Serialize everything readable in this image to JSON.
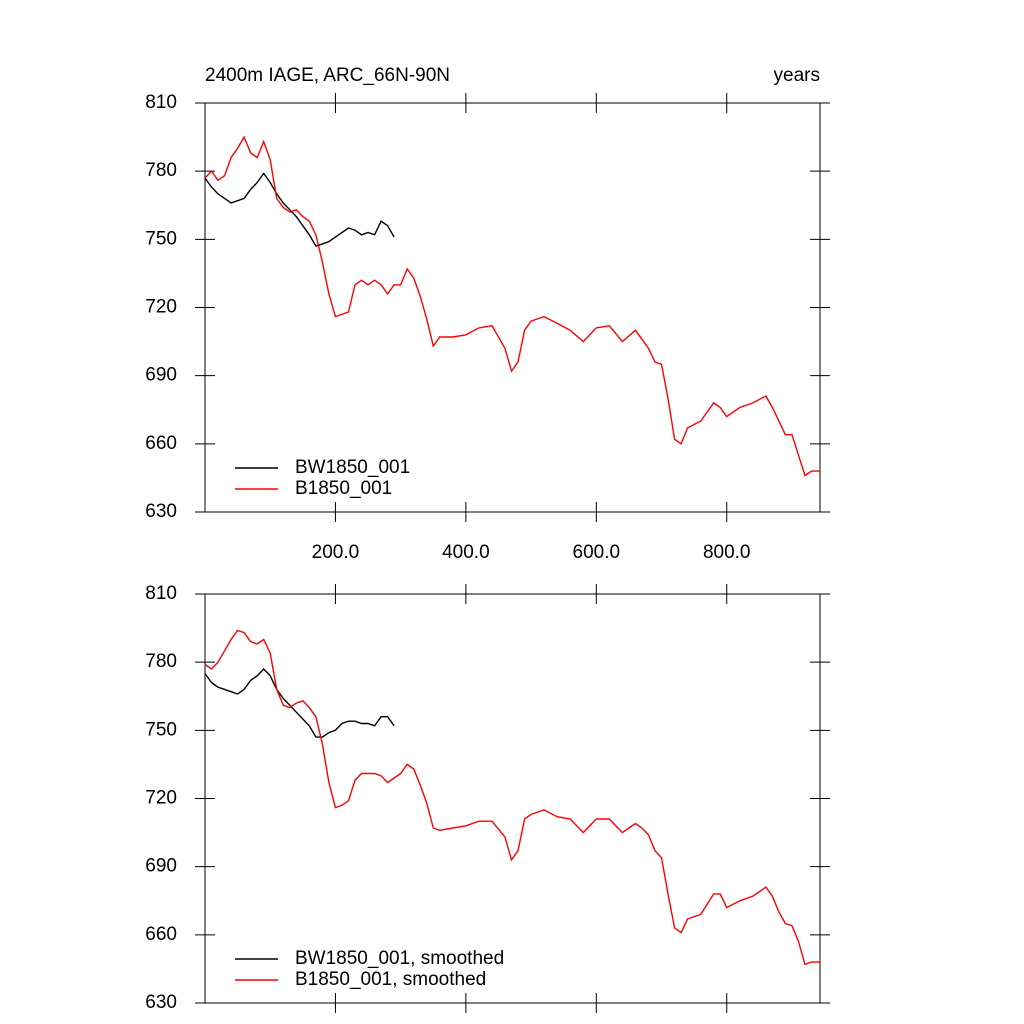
{
  "chart_data": [
    {
      "type": "line",
      "title": "2400m IAGE, ARC_66N-90N",
      "subtitle": "years",
      "xlim": [
        0,
        943
      ],
      "xticks": [
        {
          "value": 200,
          "label": "200.0"
        },
        {
          "value": 400,
          "label": "400.0"
        },
        {
          "value": 600,
          "label": "600.0"
        },
        {
          "value": 800,
          "label": "800.0"
        }
      ],
      "xtick_labels": true,
      "ylim": [
        630,
        810
      ],
      "yticks": [
        630,
        660,
        690,
        720,
        750,
        780,
        810
      ],
      "legend": "lower left",
      "series": [
        {
          "name": "BW1850_001",
          "color": "#000000",
          "x": [
            0,
            10,
            20,
            30,
            40,
            50,
            60,
            70,
            80,
            90,
            100,
            110,
            120,
            130,
            140,
            150,
            160,
            170,
            180,
            190,
            200,
            210,
            220,
            230,
            240,
            250,
            260,
            270,
            280,
            290
          ],
          "values": [
            777,
            773,
            770,
            768,
            766,
            767,
            768,
            772,
            775,
            779,
            775,
            770,
            766,
            763,
            760,
            756,
            752,
            747,
            748,
            749,
            751,
            753,
            755,
            754,
            752,
            753,
            752,
            758,
            756,
            751
          ]
        },
        {
          "name": "B1850_001",
          "color": "#ff0000",
          "x": [
            0,
            10,
            20,
            30,
            40,
            50,
            60,
            70,
            80,
            90,
            100,
            110,
            120,
            130,
            140,
            150,
            160,
            170,
            180,
            190,
            200,
            210,
            220,
            230,
            240,
            250,
            260,
            270,
            280,
            290,
            300,
            310,
            320,
            330,
            340,
            350,
            360,
            380,
            400,
            420,
            440,
            460,
            470,
            480,
            490,
            500,
            520,
            540,
            560,
            580,
            600,
            620,
            640,
            660,
            670,
            680,
            690,
            700,
            710,
            720,
            730,
            740,
            760,
            780,
            790,
            800,
            820,
            840,
            860,
            870,
            880,
            890,
            900,
            910,
            920,
            930,
            943
          ],
          "values": [
            777,
            780,
            776,
            778,
            786,
            790,
            795,
            788,
            786,
            793,
            785,
            768,
            764,
            762,
            763,
            760,
            758,
            752,
            740,
            726,
            716,
            717,
            718,
            730,
            732,
            730,
            732,
            730,
            726,
            730,
            730,
            737,
            733,
            725,
            715,
            703,
            707,
            707,
            708,
            711,
            712,
            702,
            692,
            696,
            710,
            714,
            716,
            713,
            710,
            705,
            711,
            712,
            705,
            710,
            706,
            702,
            696,
            695,
            680,
            662,
            660,
            667,
            670,
            678,
            676,
            672,
            676,
            678,
            681,
            676,
            670,
            664,
            664,
            655,
            646,
            648,
            648
          ]
        }
      ]
    },
    {
      "type": "line",
      "xlim": [
        0,
        943
      ],
      "xticks": [
        200,
        400,
        600,
        800
      ],
      "xtick_labels": false,
      "ylim": [
        630,
        810
      ],
      "yticks": [
        630,
        660,
        690,
        720,
        750,
        780,
        810
      ],
      "legend": "lower left",
      "series": [
        {
          "name": "BW1850_001, smoothed",
          "color": "#000000",
          "x": [
            0,
            10,
            20,
            30,
            40,
            50,
            60,
            70,
            80,
            90,
            100,
            110,
            120,
            130,
            140,
            150,
            160,
            170,
            180,
            190,
            200,
            210,
            220,
            230,
            240,
            250,
            260,
            270,
            280,
            290
          ],
          "values": [
            775,
            771,
            769,
            768,
            767,
            766,
            768,
            772,
            774,
            777,
            774,
            768,
            764,
            761,
            758,
            755,
            752,
            747,
            747,
            749,
            750,
            753,
            754,
            754,
            753,
            753,
            752,
            756,
            756,
            752
          ]
        },
        {
          "name": "B1850_001, smoothed",
          "color": "#ff0000",
          "x": [
            0,
            10,
            20,
            30,
            40,
            50,
            60,
            70,
            80,
            90,
            100,
            110,
            120,
            130,
            140,
            150,
            160,
            170,
            180,
            190,
            200,
            210,
            220,
            230,
            240,
            250,
            260,
            270,
            280,
            290,
            300,
            310,
            320,
            330,
            340,
            350,
            360,
            380,
            400,
            420,
            440,
            460,
            470,
            480,
            490,
            500,
            520,
            540,
            560,
            580,
            600,
            620,
            640,
            660,
            670,
            680,
            690,
            700,
            710,
            720,
            730,
            740,
            760,
            780,
            790,
            800,
            820,
            840,
            860,
            870,
            880,
            890,
            900,
            910,
            920,
            930,
            943
          ],
          "values": [
            779,
            777,
            780,
            785,
            790,
            794,
            793,
            789,
            788,
            790,
            784,
            768,
            761,
            760,
            762,
            763,
            760,
            756,
            744,
            727,
            716,
            717,
            719,
            728,
            731,
            731,
            731,
            730,
            727,
            729,
            731,
            735,
            733,
            726,
            718,
            707,
            706,
            707,
            708,
            710,
            710,
            703,
            693,
            697,
            711,
            713,
            715,
            712,
            711,
            705,
            711,
            711,
            705,
            709,
            707,
            704,
            697,
            694,
            678,
            663,
            661,
            667,
            669,
            678,
            678,
            672,
            675,
            677,
            681,
            677,
            670,
            665,
            664,
            657,
            647,
            648,
            648
          ]
        }
      ]
    }
  ]
}
